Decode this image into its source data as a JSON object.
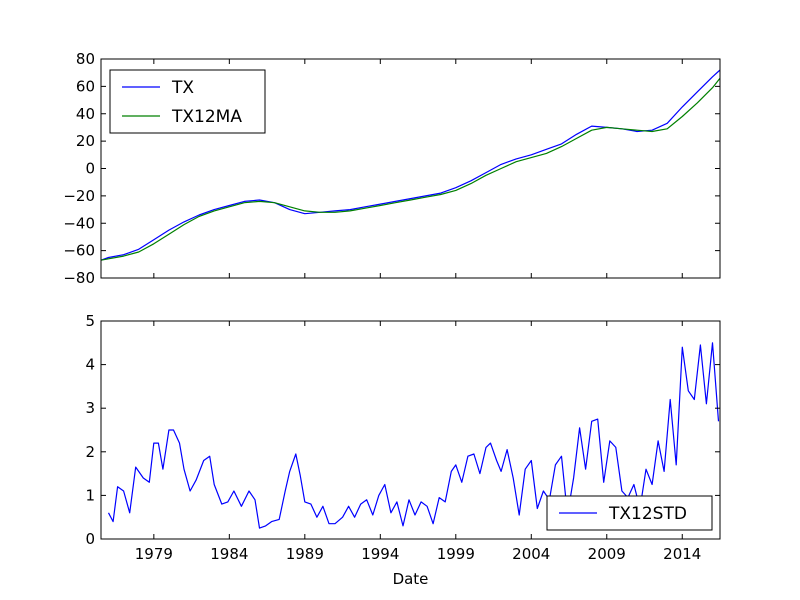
{
  "chart_data": [
    {
      "type": "line",
      "title": "",
      "xlabel": "",
      "ylabel": "",
      "ylim": [
        -80,
        80
      ],
      "yticks": [
        "80",
        "60",
        "40",
        "20",
        "0",
        "−20",
        "−40",
        "−60",
        "−80"
      ],
      "ytick_values": [
        80,
        60,
        40,
        20,
        0,
        -20,
        -40,
        -60,
        -80
      ],
      "xlim": [
        1975.5,
        2016.5
      ],
      "grid": false,
      "legend": "top-left",
      "series": [
        {
          "name": "TX",
          "color": "#0000ff",
          "x": [
            1975.5,
            1976,
            1977,
            1978,
            1979,
            1980,
            1981,
            1982,
            1983,
            1984,
            1985,
            1986,
            1987,
            1988,
            1989,
            1990,
            1991,
            1992,
            1993,
            1994,
            1995,
            1996,
            1997,
            1998,
            1999,
            2000,
            2001,
            2002,
            2003,
            2004,
            2005,
            2006,
            2007,
            2008,
            2009,
            2010,
            2011,
            2012,
            2013,
            2014,
            2015,
            2016,
            2016.5
          ],
          "y": [
            -67,
            -65,
            -63,
            -59,
            -52,
            -45,
            -39,
            -34,
            -30,
            -27,
            -24,
            -23,
            -25,
            -30,
            -33,
            -32,
            -31,
            -30,
            -28,
            -26,
            -24,
            -22,
            -20,
            -18,
            -14,
            -9,
            -3,
            3,
            7,
            10,
            14,
            18,
            25,
            31,
            30,
            29,
            27,
            28,
            33,
            45,
            56,
            67,
            72
          ]
        },
        {
          "name": "TX12MA",
          "color": "#008000",
          "x": [
            1975.5,
            1976,
            1977,
            1978,
            1979,
            1980,
            1981,
            1982,
            1983,
            1984,
            1985,
            1986,
            1987,
            1988,
            1989,
            1990,
            1991,
            1992,
            1993,
            1994,
            1995,
            1996,
            1997,
            1998,
            1999,
            2000,
            2001,
            2002,
            2003,
            2004,
            2005,
            2006,
            2007,
            2008,
            2009,
            2010,
            2011,
            2012,
            2013,
            2014,
            2015,
            2016,
            2016.5
          ],
          "y": [
            -67,
            -66,
            -64,
            -61,
            -55,
            -48,
            -41,
            -35,
            -31,
            -28,
            -25,
            -24,
            -25,
            -28,
            -31,
            -32,
            -32,
            -31,
            -29,
            -27,
            -25,
            -23,
            -21,
            -19,
            -16,
            -11,
            -5,
            0,
            5,
            8,
            11,
            16,
            22,
            28,
            30,
            29,
            28,
            27,
            29,
            38,
            48,
            59,
            66
          ]
        }
      ]
    },
    {
      "type": "line",
      "title": "",
      "xlabel": "Date",
      "ylabel": "",
      "ylim": [
        0,
        5
      ],
      "yticks": [
        "5",
        "4",
        "3",
        "2",
        "1",
        "0"
      ],
      "ytick_values": [
        5,
        4,
        3,
        2,
        1,
        0
      ],
      "xlim": [
        1975.5,
        2016.5
      ],
      "xticks": [
        "1979",
        "1984",
        "1989",
        "1994",
        "1999",
        "2004",
        "2009",
        "2014"
      ],
      "xtick_values": [
        1979,
        1984,
        1989,
        1994,
        1999,
        2004,
        2009,
        2014
      ],
      "grid": false,
      "legend": "bottom-right",
      "series": [
        {
          "name": "TX12STD",
          "color": "#0000ff",
          "x": [
            1976.0,
            1976.3,
            1976.6,
            1977.0,
            1977.4,
            1977.8,
            1978.3,
            1978.7,
            1979.0,
            1979.3,
            1979.6,
            1980.0,
            1980.3,
            1980.7,
            1981.0,
            1981.4,
            1981.8,
            1982.3,
            1982.7,
            1983.0,
            1983.5,
            1983.9,
            1984.3,
            1984.8,
            1985.3,
            1985.7,
            1986.0,
            1986.4,
            1986.8,
            1987.3,
            1987.7,
            1988.0,
            1988.4,
            1988.7,
            1989.0,
            1989.4,
            1989.8,
            1990.2,
            1990.6,
            1991.0,
            1991.5,
            1991.9,
            1992.3,
            1992.7,
            1993.1,
            1993.5,
            1993.9,
            1994.3,
            1994.7,
            1995.1,
            1995.5,
            1995.9,
            1996.3,
            1996.7,
            1997.1,
            1997.5,
            1997.9,
            1998.3,
            1998.7,
            1999.0,
            1999.4,
            1999.8,
            2000.2,
            2000.6,
            2001.0,
            2001.3,
            2001.7,
            2002.0,
            2002.4,
            2002.8,
            2003.2,
            2003.6,
            2004.0,
            2004.4,
            2004.8,
            2005.2,
            2005.6,
            2006.0,
            2006.4,
            2006.8,
            2007.2,
            2007.6,
            2008.0,
            2008.4,
            2008.8,
            2009.2,
            2009.6,
            2010.0,
            2010.4,
            2010.8,
            2011.2,
            2011.6,
            2012.0,
            2012.4,
            2012.8,
            2013.2,
            2013.6,
            2014.0,
            2014.4,
            2014.8,
            2015.2,
            2015.6,
            2016.0,
            2016.4
          ],
          "y": [
            0.6,
            0.4,
            1.2,
            1.1,
            0.6,
            1.65,
            1.4,
            1.3,
            2.2,
            2.2,
            1.6,
            2.5,
            2.5,
            2.2,
            1.6,
            1.1,
            1.35,
            1.8,
            1.9,
            1.25,
            0.8,
            0.85,
            1.1,
            0.75,
            1.1,
            0.9,
            0.25,
            0.3,
            0.4,
            0.45,
            1.1,
            1.55,
            1.95,
            1.45,
            0.85,
            0.8,
            0.5,
            0.75,
            0.35,
            0.35,
            0.5,
            0.75,
            0.5,
            0.8,
            0.9,
            0.55,
            1.0,
            1.25,
            0.6,
            0.85,
            0.3,
            0.9,
            0.55,
            0.85,
            0.75,
            0.35,
            0.95,
            0.85,
            1.55,
            1.7,
            1.3,
            1.9,
            1.95,
            1.5,
            2.1,
            2.2,
            1.8,
            1.55,
            2.05,
            1.4,
            0.55,
            1.6,
            1.8,
            0.7,
            1.1,
            0.9,
            1.7,
            1.9,
            0.55,
            1.4,
            2.55,
            1.6,
            2.7,
            2.75,
            1.3,
            2.25,
            2.1,
            1.1,
            0.95,
            1.25,
            0.7,
            1.6,
            1.25,
            2.25,
            1.55,
            3.2,
            1.7,
            4.4,
            3.4,
            3.2,
            4.45,
            3.1,
            4.5,
            2.7
          ]
        }
      ]
    }
  ]
}
